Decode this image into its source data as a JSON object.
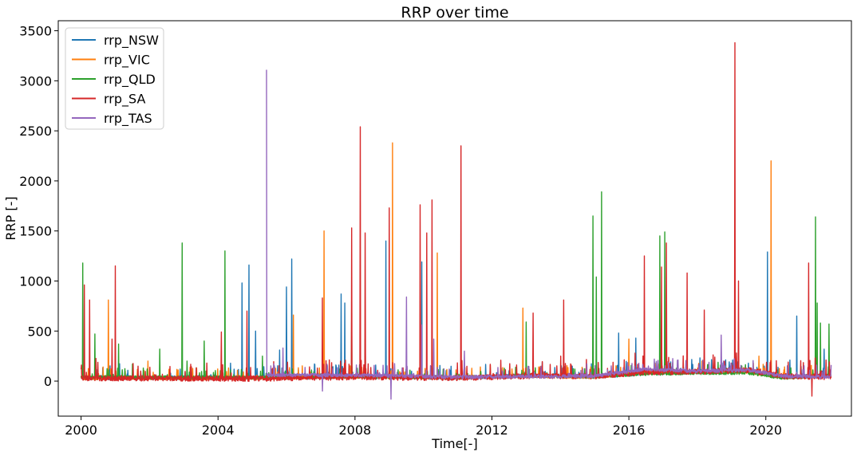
{
  "chart_data": {
    "type": "line",
    "title": "RRP over time",
    "xlabel": "Time[-]",
    "ylabel": "RRP [-]",
    "xlim": [
      "1999-05-01",
      "2022-07-01"
    ],
    "ylim": [
      -350,
      3600
    ],
    "x_ticks": [
      "2000",
      "2004",
      "2008",
      "2012",
      "2016",
      "2020"
    ],
    "y_ticks": [
      "0",
      "500",
      "1000",
      "1500",
      "2000",
      "2500",
      "3000",
      "3500"
    ],
    "legend_position": "top-left",
    "grid": false,
    "series": [
      {
        "name": "rrp_NSW",
        "color": "#1f77b4",
        "start": "2000-01-01",
        "end": "2021-11-30",
        "baseline": [
          [
            2000.0,
            35
          ],
          [
            2005.0,
            35
          ],
          [
            2008.0,
            45
          ],
          [
            2011.0,
            35
          ],
          [
            2013.0,
            55
          ],
          [
            2015.0,
            45
          ],
          [
            2016.5,
            80
          ],
          [
            2018.0,
            90
          ],
          [
            2019.5,
            100
          ],
          [
            2020.5,
            40
          ],
          [
            2021.9,
            60
          ]
        ],
        "noise": 40,
        "spikes": [
          [
            2004.7,
            980
          ],
          [
            2004.9,
            1160
          ],
          [
            2005.1,
            500
          ],
          [
            2005.8,
            310
          ],
          [
            2006.0,
            940
          ],
          [
            2006.15,
            1220
          ],
          [
            2007.6,
            870
          ],
          [
            2007.7,
            780
          ],
          [
            2008.9,
            1400
          ],
          [
            2009.95,
            1190
          ],
          [
            2015.7,
            480
          ],
          [
            2016.2,
            430
          ],
          [
            2020.05,
            1290
          ],
          [
            2020.7,
            210
          ],
          [
            2020.9,
            650
          ],
          [
            2021.7,
            320
          ]
        ]
      },
      {
        "name": "rrp_VIC",
        "color": "#ff7f0e",
        "start": "2000-01-01",
        "end": "2021-11-30",
        "baseline": [
          [
            2000.0,
            30
          ],
          [
            2005.0,
            30
          ],
          [
            2008.0,
            45
          ],
          [
            2011.0,
            35
          ],
          [
            2013.0,
            50
          ],
          [
            2015.0,
            40
          ],
          [
            2016.5,
            90
          ],
          [
            2018.0,
            90
          ],
          [
            2019.5,
            90
          ],
          [
            2020.5,
            40
          ],
          [
            2021.9,
            50
          ]
        ],
        "noise": 35,
        "spikes": [
          [
            2000.8,
            810
          ],
          [
            2001.95,
            200
          ],
          [
            2006.2,
            660
          ],
          [
            2007.1,
            1500
          ],
          [
            2009.1,
            2380
          ],
          [
            2010.4,
            1280
          ],
          [
            2012.9,
            730
          ],
          [
            2016.0,
            420
          ],
          [
            2019.8,
            250
          ],
          [
            2020.15,
            2200
          ]
        ]
      },
      {
        "name": "rrp_QLD",
        "color": "#2ca02c",
        "start": "2000-01-01",
        "end": "2021-11-30",
        "baseline": [
          [
            2000.0,
            40
          ],
          [
            2005.0,
            35
          ],
          [
            2008.0,
            45
          ],
          [
            2011.0,
            35
          ],
          [
            2013.0,
            50
          ],
          [
            2015.0,
            45
          ],
          [
            2016.5,
            70
          ],
          [
            2018.0,
            80
          ],
          [
            2019.5,
            80
          ],
          [
            2020.5,
            30
          ],
          [
            2021.9,
            50
          ]
        ],
        "noise": 30,
        "spikes": [
          [
            2000.05,
            1180
          ],
          [
            2000.4,
            470
          ],
          [
            2001.1,
            370
          ],
          [
            2001.5,
            170
          ],
          [
            2002.3,
            320
          ],
          [
            2002.95,
            1380
          ],
          [
            2003.1,
            200
          ],
          [
            2003.6,
            400
          ],
          [
            2004.2,
            1300
          ],
          [
            2005.3,
            250
          ],
          [
            2007.9,
            620
          ],
          [
            2008.3,
            420
          ],
          [
            2013.0,
            590
          ],
          [
            2014.95,
            1650
          ],
          [
            2015.05,
            1040
          ],
          [
            2015.2,
            1890
          ],
          [
            2016.9,
            1450
          ],
          [
            2017.05,
            1490
          ],
          [
            2021.45,
            1640
          ],
          [
            2021.5,
            780
          ],
          [
            2021.6,
            580
          ],
          [
            2021.85,
            570
          ]
        ]
      },
      {
        "name": "rrp_SA",
        "color": "#d62728",
        "start": "2000-01-01",
        "end": "2021-11-30",
        "baseline": [
          [
            2000.0,
            30
          ],
          [
            2005.0,
            25
          ],
          [
            2008.0,
            40
          ],
          [
            2011.0,
            30
          ],
          [
            2013.0,
            50
          ],
          [
            2015.0,
            50
          ],
          [
            2016.5,
            90
          ],
          [
            2018.0,
            95
          ],
          [
            2019.5,
            110
          ],
          [
            2020.5,
            50
          ],
          [
            2021.9,
            40
          ]
        ],
        "noise": 55,
        "spikes": [
          [
            2000.1,
            960
          ],
          [
            2000.25,
            810
          ],
          [
            2000.9,
            420
          ],
          [
            2001.0,
            1150
          ],
          [
            2004.1,
            490
          ],
          [
            2004.85,
            700
          ],
          [
            2007.05,
            830
          ],
          [
            2007.9,
            1530
          ],
          [
            2008.15,
            2540
          ],
          [
            2008.3,
            1480
          ],
          [
            2009.0,
            1730
          ],
          [
            2009.9,
            1760
          ],
          [
            2010.1,
            1480
          ],
          [
            2010.25,
            1810
          ],
          [
            2011.1,
            2350
          ],
          [
            2013.2,
            680
          ],
          [
            2014.1,
            810
          ],
          [
            2016.45,
            1250
          ],
          [
            2016.95,
            1140
          ],
          [
            2017.1,
            1380
          ],
          [
            2017.7,
            1080
          ],
          [
            2018.2,
            710
          ],
          [
            2019.1,
            3380
          ],
          [
            2019.2,
            1000
          ],
          [
            2021.25,
            1180
          ],
          [
            2021.35,
            -150
          ]
        ]
      },
      {
        "name": "rrp_TAS",
        "color": "#9467bd",
        "start": "2005-06-01",
        "end": "2021-11-30",
        "baseline": [
          [
            2005.4,
            60
          ],
          [
            2008.0,
            60
          ],
          [
            2011.0,
            40
          ],
          [
            2013.0,
            45
          ],
          [
            2015.0,
            50
          ],
          [
            2016.5,
            120
          ],
          [
            2018.0,
            100
          ],
          [
            2019.5,
            110
          ],
          [
            2020.5,
            50
          ],
          [
            2021.9,
            40
          ]
        ],
        "noise": 35,
        "spikes": [
          [
            2005.4,
            3110
          ],
          [
            2005.9,
            330
          ],
          [
            2007.05,
            -100
          ],
          [
            2009.05,
            -180
          ],
          [
            2009.5,
            840
          ],
          [
            2009.95,
            560
          ],
          [
            2010.3,
            420
          ],
          [
            2011.2,
            300
          ],
          [
            2018.7,
            460
          ]
        ]
      }
    ]
  }
}
